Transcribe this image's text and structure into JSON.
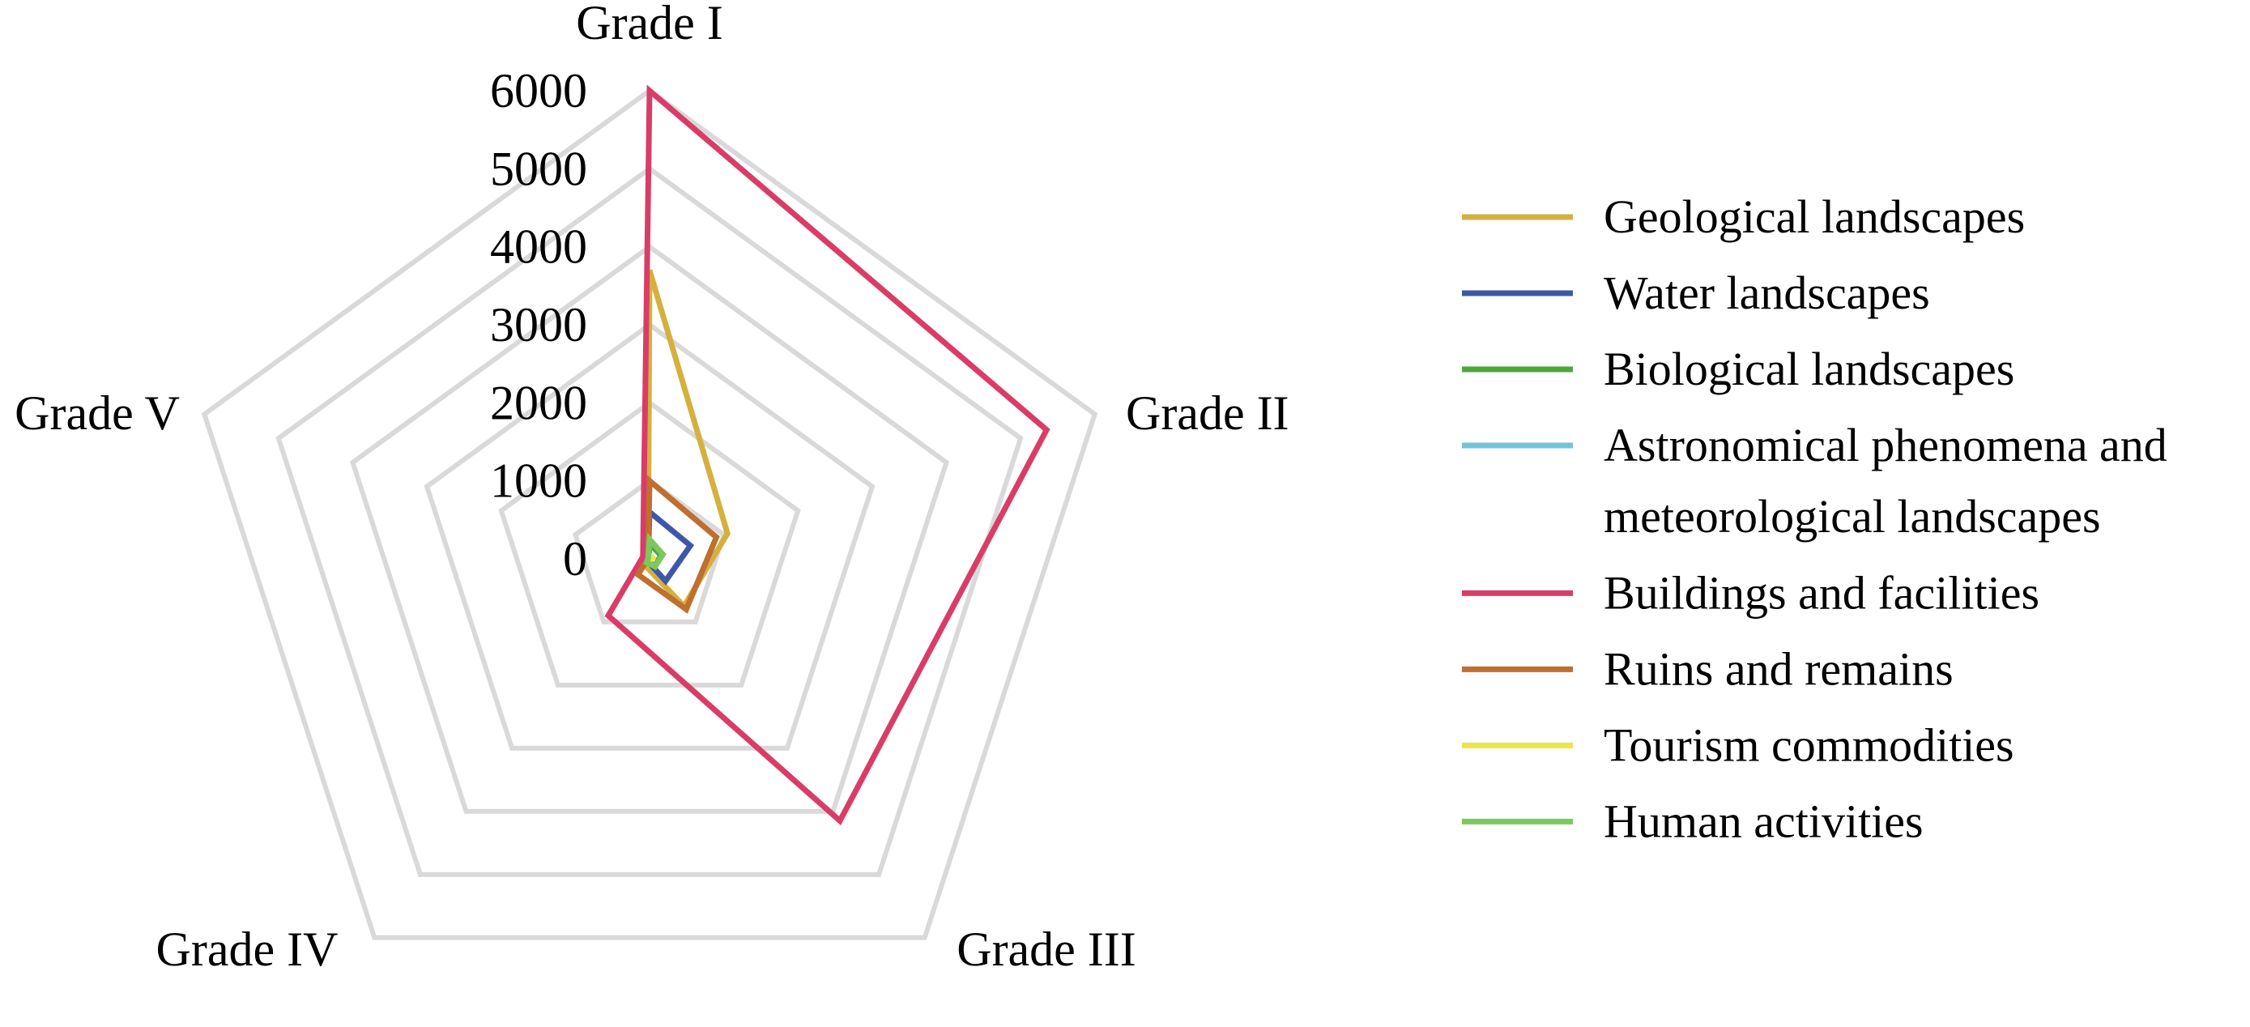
{
  "chart_data": {
    "type": "radar",
    "axes": [
      "Grade I",
      "Grade II",
      "Grade III",
      "Grade IV",
      "Grade V"
    ],
    "rlim": [
      0,
      6000
    ],
    "r_ticks": [
      "0",
      "1000",
      "2000",
      "3000",
      "4000",
      "5000",
      "6000"
    ],
    "grid": true,
    "legend_position": "right",
    "series": [
      {
        "name": "Geological landscapes",
        "color": "#d4b13f",
        "values": [
          3700,
          1050,
          750,
          100,
          20
        ]
      },
      {
        "name": "Water landscapes",
        "color": "#3f57a8",
        "values": [
          600,
          550,
          350,
          40,
          20
        ]
      },
      {
        "name": "Biological landscapes",
        "color": "#4ba83b",
        "values": [
          200,
          150,
          120,
          30,
          10
        ]
      },
      {
        "name": "Astronomical phenomena and\nmeteorological landscapes",
        "legend_lines": [
          "Astronomical phenomena and",
          "meteorological landscapes"
        ],
        "color": "#72c5d8",
        "values": [
          30,
          20,
          10,
          5,
          2
        ]
      },
      {
        "name": "Buildings and facilities",
        "color": "#d93d67",
        "values": [
          6000,
          5350,
          4150,
          900,
          90
        ]
      },
      {
        "name": "Ruins and remains",
        "color": "#bf6f2e",
        "values": [
          1000,
          900,
          800,
          250,
          20
        ]
      },
      {
        "name": "Tourism commodities",
        "color": "#ebe54b",
        "values": [
          50,
          40,
          20,
          5,
          2
        ]
      },
      {
        "name": "Human activities",
        "color": "#7cc85f",
        "values": [
          250,
          180,
          120,
          60,
          20
        ]
      }
    ]
  }
}
